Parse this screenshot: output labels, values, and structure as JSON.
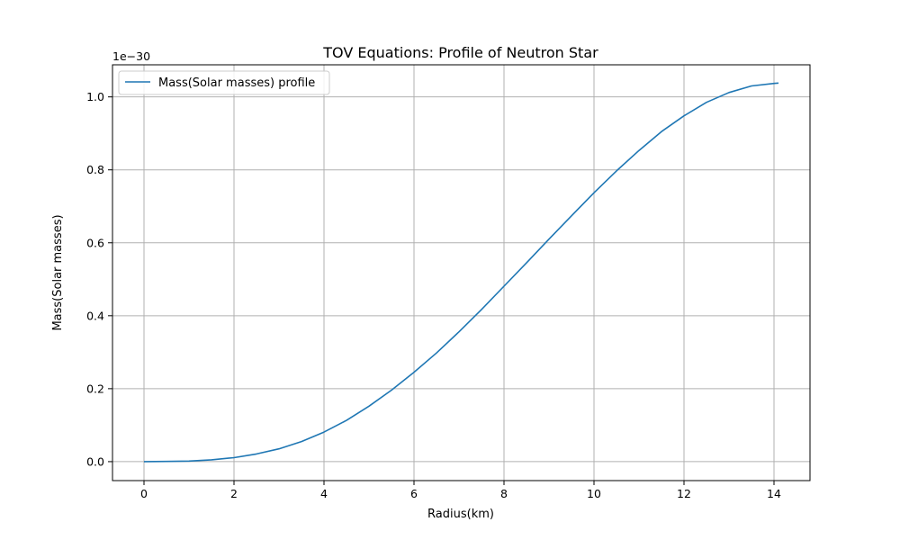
{
  "chart_data": {
    "type": "line",
    "title": "TOV Equations: Profile of Neutron Star",
    "xlabel": "Radius(km)",
    "ylabel": "Mass(Solar masses)",
    "y_offset_text": "1e−30",
    "xlim": [
      -0.7,
      14.8
    ],
    "ylim": [
      -0.052,
      1.088
    ],
    "x_ticks": [
      0,
      2,
      4,
      6,
      8,
      10,
      12,
      14
    ],
    "y_ticks": [
      0.0,
      0.2,
      0.4,
      0.6,
      0.8,
      1.0
    ],
    "y_tick_labels": [
      "0.0",
      "0.2",
      "0.4",
      "0.6",
      "0.8",
      "1.0"
    ],
    "grid": true,
    "legend_position": "upper-left",
    "line_color": "#1f77b4",
    "series": [
      {
        "name": "Mass(Solar masses) profile",
        "x": [
          0,
          0.5,
          1,
          1.5,
          2,
          2.5,
          3,
          3.5,
          4,
          4.5,
          5,
          5.5,
          6,
          6.5,
          7,
          7.5,
          8,
          8.5,
          9,
          9.5,
          10,
          10.5,
          11,
          11.5,
          12,
          12.5,
          13,
          13.5,
          14,
          14.1
        ],
        "y": [
          0.0,
          0.0005,
          0.0015,
          0.005,
          0.011,
          0.021,
          0.035,
          0.055,
          0.081,
          0.113,
          0.152,
          0.196,
          0.245,
          0.298,
          0.356,
          0.417,
          0.481,
          0.545,
          0.61,
          0.674,
          0.737,
          0.797,
          0.853,
          0.905,
          0.948,
          0.985,
          1.012,
          1.03,
          1.037,
          1.038
        ]
      }
    ]
  }
}
